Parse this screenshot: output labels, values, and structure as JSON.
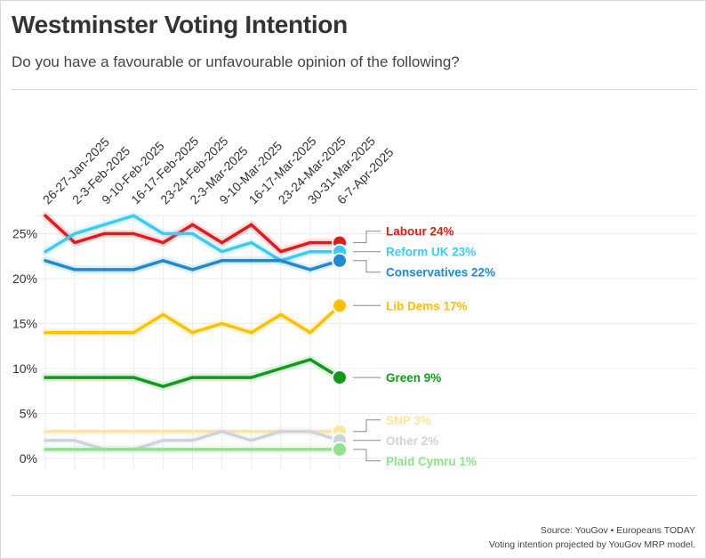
{
  "header": {
    "title": "Westminster Voting Intention",
    "subtitle": "Do you have a favourable or unfavourable opinion of the following?"
  },
  "footer": {
    "source": "Source: YouGov • Europeans TODAY",
    "note": "Voting intention projected by YouGov MRP model."
  },
  "chart_data": {
    "type": "line",
    "categories": [
      "26-27-Jan-2025",
      "2-3-Feb-2025",
      "9-10-Feb-2025",
      "16-17-Feb-2025",
      "23-24-Feb-2025",
      "2-3-Mar-2025",
      "9-10-Mar-2025",
      "16-17-Mar-2025",
      "23-24-Mar-2025",
      "30-31-Mar-2025",
      "6-7-Apr-2025"
    ],
    "y_ticks": [
      "0%",
      "5%",
      "10%",
      "15%",
      "20%",
      "25%"
    ],
    "y_tick_values": [
      0,
      5,
      10,
      15,
      20,
      25
    ],
    "ylim": [
      0,
      27
    ],
    "grid": true,
    "legend": "end-labels-right",
    "series": [
      {
        "name": "Labour",
        "label": "Labour 24%",
        "color": "#e31a1c",
        "values": [
          27,
          24,
          25,
          25,
          24,
          26,
          24,
          26,
          23,
          24,
          24
        ]
      },
      {
        "name": "Reform UK",
        "label": "Reform UK 23%",
        "color": "#3ccbf4",
        "values": [
          23,
          25,
          26,
          27,
          25,
          25,
          23,
          24,
          22,
          23,
          23
        ]
      },
      {
        "name": "Conservatives",
        "label": "Conservatives 22%",
        "color": "#1f8ad1",
        "values": [
          22,
          21,
          21,
          21,
          22,
          21,
          22,
          22,
          22,
          21,
          22
        ]
      },
      {
        "name": "Lib Dems",
        "label": "Lib Dems 17%",
        "color": "#ffc000",
        "values": [
          14,
          14,
          14,
          14,
          16,
          14,
          15,
          14,
          16,
          14,
          17
        ]
      },
      {
        "name": "Green",
        "label": "Green 9%",
        "color": "#119a1a",
        "values": [
          9,
          9,
          9,
          9,
          8,
          9,
          9,
          9,
          10,
          11,
          9
        ]
      },
      {
        "name": "SNP",
        "label": "SNP 3%",
        "color": "#ffe69a",
        "values": [
          3,
          3,
          3,
          3,
          3,
          3,
          3,
          3,
          3,
          3,
          3
        ]
      },
      {
        "name": "Other",
        "label": "Other 2%",
        "color": "#cdd4e0",
        "values": [
          2,
          2,
          1,
          1,
          2,
          2,
          3,
          2,
          3,
          3,
          2
        ]
      },
      {
        "name": "Plaid Cymru",
        "label": "Plaid Cymru 1%",
        "color": "#8ee38e",
        "values": [
          1,
          1,
          1,
          1,
          1,
          1,
          1,
          1,
          1,
          1,
          1
        ]
      }
    ]
  }
}
